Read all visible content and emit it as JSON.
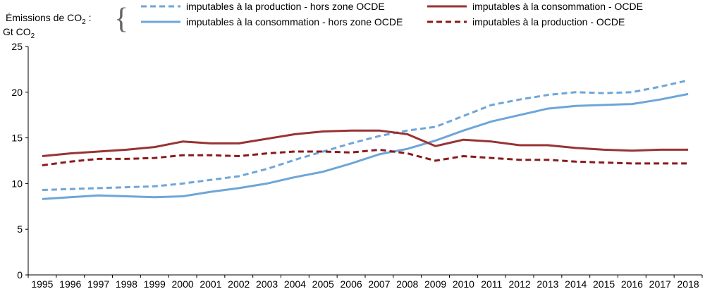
{
  "chart_data": {
    "type": "line",
    "legend_intro": "Émissions de CO",
    "legend_intro_sub": "2",
    "legend_intro_suffix": " :",
    "ylabel": "Gt CO",
    "ylabel_sub": "2",
    "ylim": [
      0,
      25
    ],
    "yticks": [
      0,
      5,
      10,
      15,
      20,
      25
    ],
    "grid": false,
    "legend_position": "top",
    "x": [
      "1995",
      "1996",
      "1997",
      "1998",
      "1999",
      "2000",
      "2001",
      "2002",
      "2003",
      "2004",
      "2005",
      "2006",
      "2007",
      "2008",
      "2009",
      "2010",
      "2011",
      "2012",
      "2013",
      "2014",
      "2015",
      "2016",
      "2017",
      "2018"
    ],
    "series": [
      {
        "name": "imputables à la production - hors zone OCDE",
        "color": "#6ea6d8",
        "dash": "dashed",
        "values": [
          9.3,
          9.4,
          9.5,
          9.6,
          9.7,
          10.0,
          10.4,
          10.8,
          11.6,
          12.6,
          13.5,
          14.4,
          15.2,
          15.8,
          16.2,
          17.4,
          18.6,
          19.2,
          19.7,
          20.0,
          19.9,
          20.0,
          20.6,
          21.3
        ]
      },
      {
        "name": "imputables à la consommation - hors zone OCDE",
        "color": "#6ea6d8",
        "dash": "solid",
        "values": [
          8.3,
          8.5,
          8.7,
          8.6,
          8.5,
          8.6,
          9.1,
          9.5,
          10.0,
          10.7,
          11.3,
          12.2,
          13.2,
          13.8,
          14.7,
          15.8,
          16.8,
          17.5,
          18.2,
          18.5,
          18.6,
          18.7,
          19.2,
          19.8
        ]
      },
      {
        "name": "imputables à la consommation - OCDE",
        "color": "#993333",
        "dash": "solid",
        "values": [
          13.0,
          13.3,
          13.5,
          13.7,
          14.0,
          14.6,
          14.4,
          14.4,
          14.9,
          15.4,
          15.7,
          15.8,
          15.8,
          15.4,
          14.1,
          14.8,
          14.6,
          14.2,
          14.2,
          13.9,
          13.7,
          13.6,
          13.7,
          13.7
        ]
      },
      {
        "name": "imputables à la production - OCDE",
        "color": "#8b1a1a",
        "dash": "dashed",
        "values": [
          12.0,
          12.4,
          12.7,
          12.7,
          12.8,
          13.1,
          13.1,
          13.0,
          13.3,
          13.5,
          13.5,
          13.4,
          13.7,
          13.3,
          12.5,
          13.0,
          12.8,
          12.6,
          12.6,
          12.4,
          12.3,
          12.2,
          12.2,
          12.2
        ]
      }
    ]
  }
}
